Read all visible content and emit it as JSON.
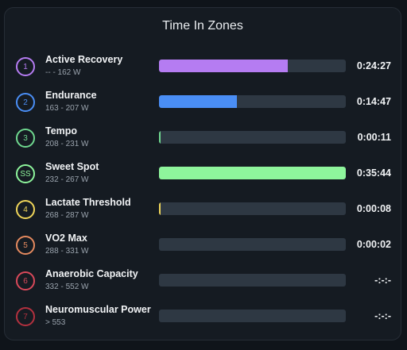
{
  "title": "Time In Zones",
  "zones": [
    {
      "badge": "1",
      "name": "Active Recovery",
      "range": "-- - 162 W",
      "time": "0:24:27",
      "fill": 0.69,
      "color": "#b57cf2"
    },
    {
      "badge": "2",
      "name": "Endurance",
      "range": "163 - 207 W",
      "time": "0:14:47",
      "fill": 0.415,
      "color": "#4a8ef5"
    },
    {
      "badge": "3",
      "name": "Tempo",
      "range": "208 - 231 W",
      "time": "0:00:11",
      "fill": 0.006,
      "color": "#6fd88f"
    },
    {
      "badge": "SS",
      "name": "Sweet Spot",
      "range": "232 - 267 W",
      "time": "0:35:44",
      "fill": 1.0,
      "color": "#8ef59c"
    },
    {
      "badge": "4",
      "name": "Lactate Threshold",
      "range": "268 - 287 W",
      "time": "0:00:08",
      "fill": 0.004,
      "color": "#f0d65a"
    },
    {
      "badge": "5",
      "name": "VO2 Max",
      "range": "288 - 331 W",
      "time": "0:00:02",
      "fill": 0.0,
      "color": "#e58a5f"
    },
    {
      "badge": "6",
      "name": "Anaerobic Capacity",
      "range": "332 - 552 W",
      "time": "-:-:-",
      "fill": 0.0,
      "color": "#d9495a"
    },
    {
      "badge": "7",
      "name": "Neuromuscular Power",
      "range": "> 553",
      "time": "-:-:-",
      "fill": 0.0,
      "color": "#b3313f"
    }
  ]
}
